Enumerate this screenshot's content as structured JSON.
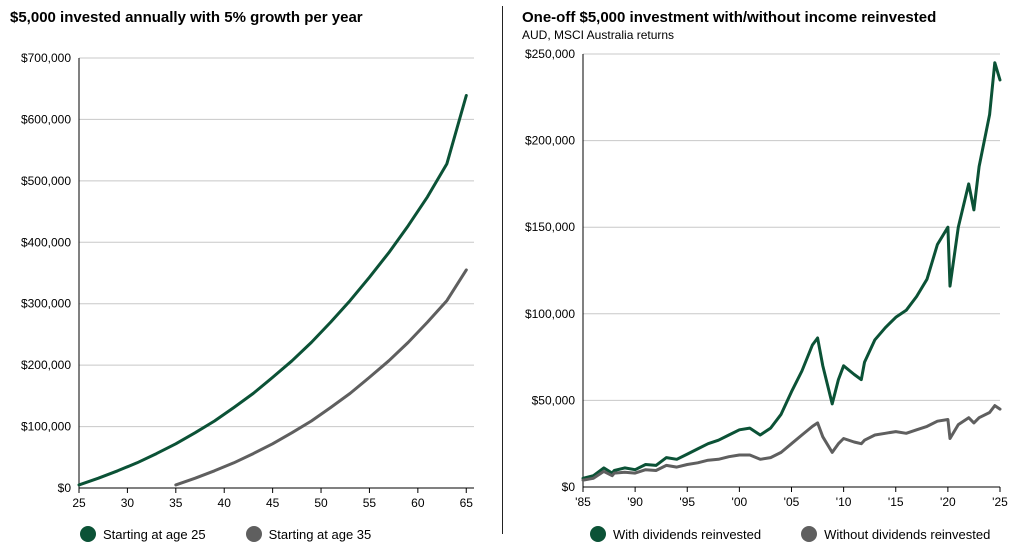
{
  "charts": {
    "left": {
      "title": "$5,000 invested annually with 5% growth per year",
      "legend": [
        {
          "label": "Starting at age 25",
          "color": "#0b5236"
        },
        {
          "label": "Starting at age 35",
          "color": "#5f5f5f"
        }
      ]
    },
    "right": {
      "title": "One-off $5,000 investment with/without income reinvested",
      "subtitle": "AUD, MSCI Australia returns",
      "legend": [
        {
          "label": "With dividends reinvested",
          "color": "#0b5236"
        },
        {
          "label": "Without dividends reinvested",
          "color": "#5f5f5f"
        }
      ]
    }
  },
  "chart_data": [
    {
      "type": "line",
      "title": "$5,000 invested annually with 5% growth per year",
      "xlabel": "",
      "ylabel": "",
      "xlim": [
        25,
        65.8
      ],
      "ylim": [
        0,
        700000
      ],
      "x_ticks": [
        25,
        30,
        35,
        40,
        45,
        50,
        55,
        60,
        65
      ],
      "y_ticks": [
        0,
        100000,
        200000,
        300000,
        400000,
        500000,
        600000,
        700000
      ],
      "y_tick_labels": [
        "$0",
        "$100,000",
        "$200,000",
        "$300,000",
        "$400,000",
        "$500,000",
        "$600,000",
        "$700,000"
      ],
      "grid": "horizontal",
      "legend_position": "bottom",
      "series": [
        {
          "name": "Starting at age 25",
          "color": "#0b5236",
          "x": [
            25,
            27,
            29,
            31,
            33,
            35,
            37,
            39,
            41,
            43,
            45,
            47,
            49,
            51,
            53,
            55,
            57,
            59,
            61,
            63,
            65
          ],
          "y": [
            5000,
            16000,
            28000,
            41000,
            56000,
            72000,
            90000,
            109000,
            131000,
            154000,
            180000,
            207000,
            237000,
            270000,
            305000,
            343000,
            383000,
            427000,
            474000,
            528000,
            639000
          ]
        },
        {
          "name": "Starting at age 35",
          "color": "#5f5f5f",
          "x": [
            35,
            37,
            39,
            41,
            43,
            45,
            47,
            49,
            51,
            53,
            55,
            57,
            59,
            61,
            63,
            65
          ],
          "y": [
            5000,
            16000,
            28000,
            41000,
            56000,
            72000,
            90000,
            109000,
            131000,
            154000,
            180000,
            207000,
            237000,
            270000,
            305000,
            355000
          ]
        }
      ]
    },
    {
      "type": "line",
      "title": "One-off $5,000 investment with/without income reinvested",
      "subtitle": "AUD, MSCI Australia returns",
      "xlabel": "",
      "ylabel": "",
      "xlim": [
        1985,
        2025
      ],
      "ylim": [
        0,
        250000
      ],
      "x_ticks": [
        1985,
        1990,
        1995,
        2000,
        2005,
        2010,
        2015,
        2020,
        2025
      ],
      "x_tick_labels": [
        "'85",
        "'90",
        "'95",
        "'00",
        "'05",
        "'10",
        "'15",
        "'20",
        "'25"
      ],
      "y_ticks": [
        0,
        50000,
        100000,
        150000,
        200000,
        250000
      ],
      "y_tick_labels": [
        "$0",
        "$50,000",
        "$100,000",
        "$150,000",
        "$200,000",
        "$250,000"
      ],
      "grid": "horizontal",
      "legend_position": "bottom",
      "series": [
        {
          "name": "With dividends reinvested",
          "color": "#0b5236",
          "x": [
            1985,
            1986,
            1987,
            1987.8,
            1988,
            1989,
            1990,
            1991,
            1992,
            1993,
            1994,
            1995,
            1996,
            1997,
            1998,
            1999,
            2000,
            2001,
            2002,
            2003,
            2004,
            2005,
            2006,
            2007,
            2007.5,
            2008,
            2008.9,
            2009.5,
            2010,
            2011,
            2011.7,
            2012,
            2013,
            2014,
            2015,
            2016,
            2017,
            2018,
            2019,
            2020,
            2020.2,
            2021,
            2022,
            2022.5,
            2023,
            2024,
            2024.5,
            2025
          ],
          "y": [
            5000,
            6500,
            11000,
            8000,
            9500,
            11000,
            10000,
            13000,
            12500,
            17000,
            16000,
            19000,
            22000,
            25000,
            27000,
            30000,
            33000,
            34000,
            30000,
            34000,
            42000,
            55000,
            67000,
            82000,
            86000,
            70000,
            48000,
            62000,
            70000,
            65000,
            62000,
            72000,
            85000,
            92000,
            98000,
            102000,
            110000,
            120000,
            140000,
            150000,
            116000,
            150000,
            175000,
            160000,
            185000,
            215000,
            245000,
            235000
          ]
        },
        {
          "name": "Without dividends reinvested",
          "color": "#5f5f5f",
          "x": [
            1985,
            1986,
            1987,
            1987.8,
            1988,
            1989,
            1990,
            1991,
            1992,
            1993,
            1994,
            1995,
            1996,
            1997,
            1998,
            1999,
            2000,
            2001,
            2002,
            2003,
            2004,
            2005,
            2006,
            2007,
            2007.5,
            2008,
            2008.9,
            2009.5,
            2010,
            2011,
            2011.7,
            2012,
            2013,
            2014,
            2015,
            2016,
            2017,
            2018,
            2019,
            2020,
            2020.2,
            2021,
            2022,
            2022.5,
            2023,
            2024,
            2024.5,
            2025
          ],
          "y": [
            4000,
            5000,
            9000,
            6500,
            8000,
            8500,
            8000,
            10000,
            9500,
            12500,
            11500,
            13000,
            14000,
            15500,
            16000,
            17500,
            18500,
            18500,
            16000,
            17000,
            20000,
            25000,
            30000,
            35000,
            37000,
            29000,
            20000,
            25000,
            28000,
            26000,
            25000,
            27000,
            30000,
            31000,
            32000,
            31000,
            33000,
            35000,
            38000,
            39000,
            28000,
            36000,
            40000,
            37000,
            40000,
            43000,
            47000,
            45000
          ]
        }
      ]
    }
  ]
}
